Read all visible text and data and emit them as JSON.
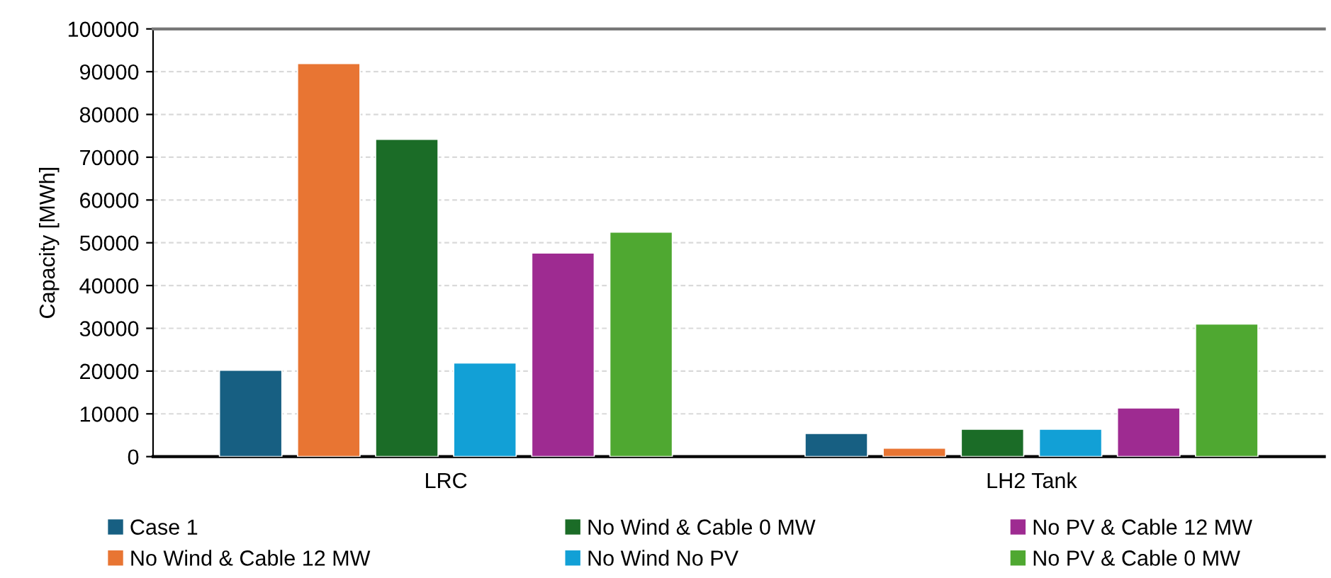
{
  "chart_data": {
    "type": "bar",
    "ylabel": "Capacity [MWh]",
    "categories": [
      "LRC",
      "LH2 Tank"
    ],
    "series": [
      {
        "name": "Case 1",
        "color": "#175f82",
        "values": [
          20200,
          5400
        ]
      },
      {
        "name": "No Wind & Cable 12 MW",
        "color": "#e87533",
        "values": [
          91900,
          2000
        ]
      },
      {
        "name": "No Wind & Cable 0 MW",
        "color": "#1b6c27",
        "values": [
          74200,
          6400
        ]
      },
      {
        "name": "No Wind No PV",
        "color": "#12a0d6",
        "values": [
          21900,
          6400
        ]
      },
      {
        "name": "No PV & Cable 12 MW",
        "color": "#9e2b91",
        "values": [
          47600,
          11400
        ]
      },
      {
        "name": "No PV & Cable 0 MW",
        "color": "#4fa831",
        "values": [
          52500,
          31000
        ]
      }
    ],
    "ylim": [
      0,
      100000
    ],
    "yticks": [
      0,
      10000,
      20000,
      30000,
      40000,
      50000,
      60000,
      70000,
      80000,
      90000,
      100000
    ],
    "grid": "y",
    "legend": "bottom"
  }
}
